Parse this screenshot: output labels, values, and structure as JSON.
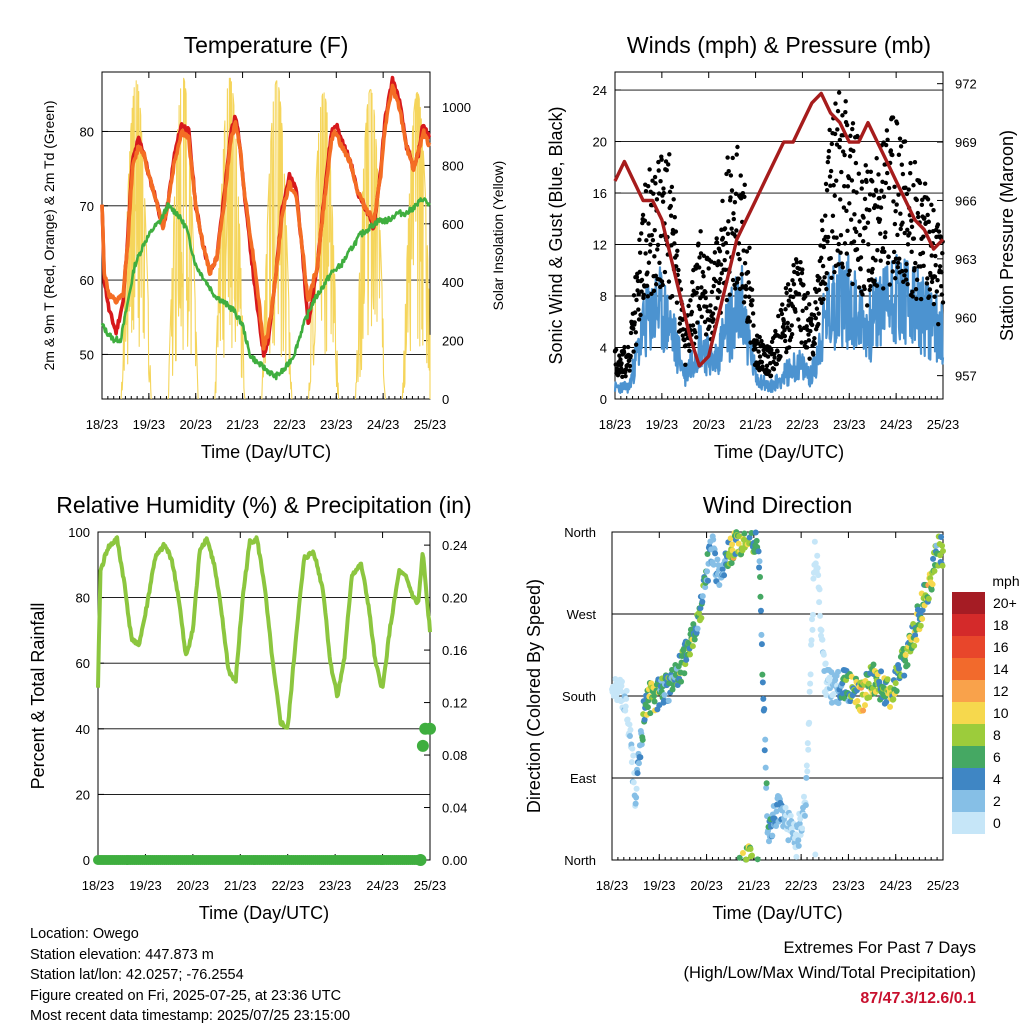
{
  "panels": {
    "temperature": {
      "title": "Temperature (F)",
      "left_ylabel": "2m & 9m T (Red, Orange) & 2m Td (Green)",
      "right_ylabel": "Solar Insolation (Yellow)",
      "xlabel": "Time (Day/UTC)"
    },
    "winds": {
      "title": "Winds (mph) & Pressure (mb)",
      "left_ylabel": "Sonic Wind & Gust (Blue, Black)",
      "right_ylabel": "Station Pressure (Maroon)",
      "xlabel": "Time (Day/UTC)"
    },
    "humidity": {
      "title": "Relative Humidity (%) & Precipitation (in)",
      "left_ylabel": "Percent & Total Rainfall",
      "xlabel": "Time (Day/UTC)"
    },
    "wind_direction": {
      "title": "Wind Direction",
      "left_ylabel": "Direction (Colored By Speed)",
      "xlabel": "Time (Day/UTC)",
      "colorbar_title": "mph"
    }
  },
  "footer": {
    "location": "Location: Owego",
    "elevation": "Station elevation: 447.873 m",
    "latlon": "Station lat/lon: 42.0257; -76.2554",
    "created": "Figure created on Fri, 2025-07-25, at 23:36 UTC",
    "recent": "Most recent data timestamp: 2025/07/25 23:15:00",
    "extremes_title": "Extremes For Past 7 Days",
    "extremes_sub": "(High/Low/Max Wind/Total Precipitation)",
    "extremes_value": "87/47.3/12.6/0.1"
  },
  "colors": {
    "temp_2m": "#d7191c",
    "temp_9m": "#f46d24",
    "dewpoint": "#3fae3f",
    "solar": "#f5d55b",
    "wind": "#4c93d0",
    "gust": "#000000",
    "pressure": "#a61c1c",
    "rh": "#8cc63f",
    "precip": "#3fae3f"
  },
  "chart_data": [
    {
      "id": "temperature",
      "type": "line",
      "title": "Temperature (F)",
      "xlabel": "Time (Day/UTC)",
      "ylabel": "2m & 9m T (Red, Orange) & 2m Td (Green)",
      "y2label": "Solar Insolation (Yellow)",
      "x_ticks": [
        "18/23",
        "19/23",
        "20/23",
        "21/23",
        "22/23",
        "23/23",
        "24/23",
        "25/23"
      ],
      "xlim": [
        0,
        7
      ],
      "ylim": [
        44,
        88
      ],
      "y_ticks": [
        50,
        60,
        70,
        80
      ],
      "y2lim": [
        0,
        1120
      ],
      "y2_ticks": [
        0,
        200,
        400,
        600,
        800,
        1000
      ],
      "series": [
        {
          "name": "2m T",
          "color": "#d7191c",
          "x": [
            0,
            0.05,
            0.15,
            0.3,
            0.45,
            0.55,
            0.65,
            0.78,
            0.9,
            1.0,
            1.15,
            1.3,
            1.4,
            1.55,
            1.7,
            1.85,
            2.0,
            2.15,
            2.3,
            2.45,
            2.6,
            2.75,
            2.85,
            2.95,
            3.0,
            3.1,
            3.3,
            3.45,
            3.55,
            3.7,
            3.85,
            4.0,
            4.15,
            4.3,
            4.4,
            4.6,
            4.75,
            4.9,
            5.0,
            5.1,
            5.3,
            5.45,
            5.6,
            5.8,
            5.95,
            6.05,
            6.2,
            6.35,
            6.5,
            6.65,
            6.75,
            6.85,
            6.93,
            7.0
          ],
          "values": [
            70,
            60,
            56,
            53,
            57,
            66,
            76,
            79,
            77,
            74,
            71,
            67,
            70,
            77,
            81,
            80,
            70,
            65,
            61,
            63,
            71,
            80,
            82,
            78,
            74,
            68,
            57,
            50,
            52,
            60,
            70,
            74,
            72,
            62,
            54,
            62,
            72,
            80,
            81,
            79,
            76,
            72,
            70,
            67,
            75,
            82,
            87,
            84,
            78,
            75,
            77,
            81,
            80,
            79
          ]
        },
        {
          "name": "9m T",
          "color": "#f46d24",
          "x": [
            0,
            0.05,
            0.15,
            0.3,
            0.45,
            0.55,
            0.65,
            0.78,
            0.9,
            1.0,
            1.15,
            1.3,
            1.4,
            1.55,
            1.7,
            1.85,
            2.0,
            2.15,
            2.3,
            2.45,
            2.6,
            2.75,
            2.85,
            2.95,
            3.0,
            3.1,
            3.3,
            3.45,
            3.55,
            3.7,
            3.85,
            4.0,
            4.15,
            4.3,
            4.4,
            4.6,
            4.75,
            4.9,
            5.0,
            5.1,
            5.3,
            5.45,
            5.6,
            5.8,
            5.95,
            6.05,
            6.2,
            6.35,
            6.5,
            6.65,
            6.75,
            6.85,
            6.93,
            7.0
          ],
          "values": [
            70,
            61,
            58,
            57,
            58,
            65,
            75,
            78,
            77,
            74,
            71,
            67,
            70,
            76,
            80,
            79,
            70,
            65,
            61,
            63,
            70,
            79,
            81,
            78,
            74,
            69,
            60,
            51,
            53,
            60,
            69,
            73,
            71,
            63,
            57,
            62,
            71,
            79,
            80,
            78,
            76,
            72,
            70,
            68,
            74,
            81,
            86,
            83,
            78,
            75,
            77,
            80,
            79,
            78
          ]
        },
        {
          "name": "2m Td",
          "color": "#3fae3f",
          "x": [
            0,
            0.1,
            0.25,
            0.4,
            0.55,
            0.7,
            0.9,
            1.1,
            1.25,
            1.4,
            1.6,
            1.8,
            2.0,
            2.2,
            2.4,
            2.6,
            2.8,
            3.0,
            3.15,
            3.3,
            3.5,
            3.7,
            3.9,
            4.1,
            4.3,
            4.5,
            4.7,
            4.9,
            5.1,
            5.3,
            5.5,
            5.7,
            5.9,
            6.1,
            6.3,
            6.5,
            6.7,
            6.85,
            7.0
          ],
          "values": [
            54,
            53,
            52,
            52,
            57,
            62,
            65,
            67,
            68,
            70,
            69,
            67,
            62,
            60,
            58,
            57,
            56,
            54,
            50,
            49,
            48,
            47,
            48,
            50,
            54,
            57,
            59,
            61,
            62,
            64,
            66,
            67,
            68,
            68,
            69,
            69,
            70,
            71,
            70
          ]
        },
        {
          "name": "Solar Insolation",
          "axis": "y2",
          "color": "#f5d55b",
          "peak_x": [
            0.73,
            1.73,
            2.73,
            3.73,
            4.73,
            5.73,
            6.73
          ],
          "peak_values": [
            1090,
            1100,
            1100,
            1090,
            1050,
            1060,
            1050
          ]
        }
      ]
    },
    {
      "id": "winds",
      "type": "line",
      "title": "Winds (mph) & Pressure (mb)",
      "xlabel": "Time (Day/UTC)",
      "ylabel": "Sonic Wind & Gust (Blue, Black)",
      "y2label": "Station Pressure (Maroon)",
      "x_ticks": [
        "18/23",
        "19/23",
        "20/23",
        "21/23",
        "22/23",
        "23/23",
        "24/23",
        "25/23"
      ],
      "xlim": [
        0,
        7
      ],
      "ylim": [
        0,
        25.4
      ],
      "y_ticks": [
        0,
        4,
        8,
        12,
        16,
        20,
        24
      ],
      "y2lim": [
        955.8,
        972.6
      ],
      "y2_ticks": [
        957,
        960,
        963,
        966,
        969,
        972
      ],
      "series": [
        {
          "name": "Sonic Wind",
          "color": "#4c93d0",
          "x": [
            0,
            0.3,
            0.6,
            0.9,
            1.2,
            1.5,
            1.8,
            2.1,
            2.4,
            2.7,
            3.0,
            3.3,
            3.6,
            3.9,
            4.2,
            4.5,
            4.8,
            5.1,
            5.4,
            5.7,
            6.0,
            6.3,
            6.6,
            6.9,
            7.0
          ],
          "values": [
            1,
            1,
            6,
            8,
            6,
            2,
            5,
            3,
            6,
            8,
            2,
            1,
            2,
            3,
            2,
            7,
            9,
            8,
            6,
            8,
            9,
            8,
            7,
            6,
            6
          ]
        },
        {
          "name": "Gust",
          "color": "#000000",
          "x": [
            0,
            0.3,
            0.6,
            0.9,
            1.2,
            1.5,
            1.8,
            2.1,
            2.4,
            2.7,
            3.0,
            3.3,
            3.6,
            3.9,
            4.2,
            4.5,
            4.8,
            5.1,
            5.4,
            5.7,
            6.0,
            6.3,
            6.6,
            6.9,
            7.0
          ],
          "values": [
            3,
            3,
            12,
            15,
            14,
            4,
            10,
            8,
            14,
            15,
            4,
            3,
            6,
            9,
            5,
            15,
            18,
            16,
            13,
            15,
            17,
            14,
            13,
            10,
            9
          ]
        },
        {
          "name": "Station Pressure",
          "axis": "y2",
          "color": "#a61c1c",
          "x": [
            0,
            0.2,
            0.4,
            0.6,
            0.8,
            1.0,
            1.2,
            1.4,
            1.6,
            1.8,
            2.0,
            2.2,
            2.4,
            2.6,
            2.8,
            3.0,
            3.2,
            3.4,
            3.6,
            3.8,
            4.0,
            4.2,
            4.4,
            4.6,
            4.8,
            5.0,
            5.2,
            5.4,
            5.6,
            5.8,
            6.0,
            6.2,
            6.4,
            6.6,
            6.8,
            7.0
          ],
          "values": [
            967,
            968,
            967,
            966,
            966,
            965,
            963,
            961,
            959,
            957.5,
            958,
            960,
            962,
            964,
            965,
            966,
            967,
            968,
            969,
            969,
            970,
            971,
            971.5,
            970.5,
            970,
            969,
            969,
            970,
            969,
            968,
            967,
            966,
            965,
            964.5,
            963.5,
            964
          ]
        }
      ]
    },
    {
      "id": "humidity",
      "type": "line",
      "title": "Relative Humidity (%) & Precipitation (in)",
      "xlabel": "Time (Day/UTC)",
      "ylabel": "Percent & Total Rainfall",
      "x_ticks": [
        "18/23",
        "19/23",
        "20/23",
        "21/23",
        "22/23",
        "23/23",
        "24/23",
        "25/23"
      ],
      "xlim": [
        0,
        7
      ],
      "ylim": [
        0,
        100
      ],
      "y_ticks": [
        0,
        20,
        40,
        60,
        80,
        100
      ],
      "y2lim": [
        0,
        0.25
      ],
      "y2_ticks": [
        0.0,
        0.04,
        0.08,
        0.12,
        0.16,
        0.2,
        0.24
      ],
      "series": [
        {
          "name": "Relative Humidity",
          "color": "#8cc63f",
          "x": [
            0,
            0.05,
            0.2,
            0.4,
            0.55,
            0.7,
            0.85,
            1.0,
            1.2,
            1.4,
            1.55,
            1.7,
            1.85,
            2.0,
            2.15,
            2.3,
            2.45,
            2.6,
            2.75,
            2.9,
            3.05,
            3.2,
            3.35,
            3.5,
            3.7,
            3.85,
            4.0,
            4.2,
            4.35,
            4.55,
            4.75,
            4.9,
            5.05,
            5.2,
            5.35,
            5.55,
            5.7,
            5.85,
            6.0,
            6.15,
            6.35,
            6.5,
            6.65,
            6.75,
            6.85,
            6.93,
            7.0
          ],
          "values": [
            52,
            88,
            95,
            98,
            85,
            68,
            65,
            75,
            92,
            96,
            92,
            80,
            62,
            70,
            95,
            98,
            90,
            76,
            58,
            54,
            80,
            97,
            98,
            85,
            58,
            42,
            40,
            72,
            92,
            94,
            82,
            60,
            50,
            62,
            87,
            90,
            78,
            60,
            52,
            70,
            88,
            86,
            80,
            78,
            94,
            80,
            70
          ]
        },
        {
          "name": "Total Precipitation",
          "axis": "y2",
          "color": "#3fae3f",
          "x": [
            0,
            1,
            2,
            3,
            4,
            5,
            6,
            6.8,
            6.85,
            6.9,
            7.0
          ],
          "values": [
            0,
            0,
            0,
            0,
            0,
            0,
            0,
            0.0,
            0.087,
            0.1,
            0.1
          ]
        }
      ]
    },
    {
      "id": "wind_direction",
      "type": "scatter",
      "title": "Wind Direction",
      "xlabel": "Time (Day/UTC)",
      "ylabel": "Direction (Colored By Speed)",
      "x_ticks": [
        "18/23",
        "19/23",
        "20/23",
        "21/23",
        "22/23",
        "23/23",
        "24/23",
        "25/23"
      ],
      "xlim": [
        0,
        7
      ],
      "ylim": [
        0,
        360
      ],
      "y_tick_labels": [
        "North",
        "East",
        "South",
        "West",
        "North"
      ],
      "colorbar": {
        "title": "mph",
        "labels": [
          "20+",
          "18",
          "16",
          "14",
          "12",
          "10",
          "8",
          "6",
          "4",
          "2",
          "0"
        ],
        "colors": [
          "#a51c24",
          "#d42a2a",
          "#e8462b",
          "#f26a2c",
          "#f9a24b",
          "#f6d84d",
          "#9ccc3b",
          "#45a863",
          "#3f86c4",
          "#86bfe6",
          "#c6e6f8"
        ]
      },
      "series": [
        {
          "name": "Direction",
          "x": [
            0.1,
            0.3,
            0.5,
            0.7,
            0.9,
            1.1,
            1.3,
            1.5,
            1.7,
            1.9,
            2.1,
            2.3,
            2.5,
            2.7,
            2.9,
            3.1,
            3.3,
            3.5,
            3.7,
            3.9,
            4.1,
            4.3,
            4.5,
            4.7,
            4.9,
            5.1,
            5.3,
            5.5,
            5.7,
            5.9,
            6.1,
            6.3,
            6.5,
            6.7,
            6.9
          ],
          "values": [
            185,
            180,
            70,
            175,
            180,
            185,
            195,
            215,
            240,
            280,
            345,
            300,
            340,
            350,
            360,
            345,
            20,
            60,
            40,
            20,
            65,
            350,
            200,
            185,
            195,
            185,
            180,
            200,
            190,
            180,
            210,
            230,
            270,
            300,
            340
          ],
          "speeds": [
            1,
            2,
            2,
            9,
            10,
            6,
            7,
            8,
            8,
            7,
            4,
            3,
            9,
            10,
            8,
            6,
            5,
            4,
            3,
            2,
            2,
            1,
            2,
            3,
            6,
            9,
            10,
            9,
            8,
            9,
            8,
            9,
            9,
            10,
            7
          ]
        }
      ]
    }
  ]
}
